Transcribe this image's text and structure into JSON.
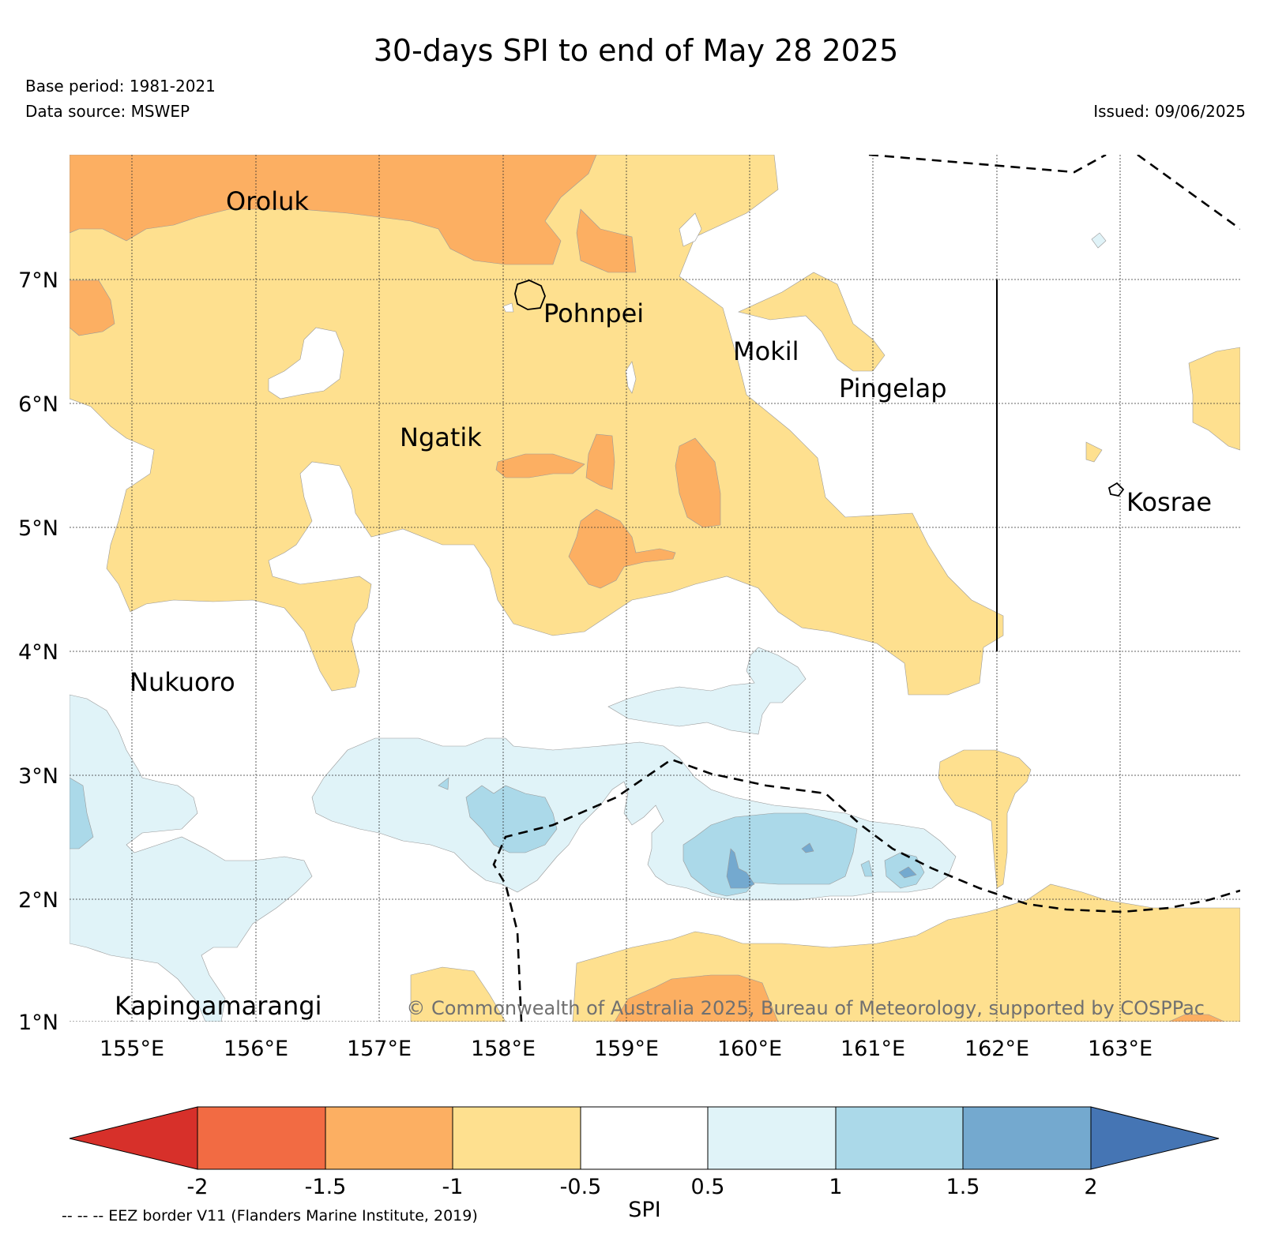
{
  "title": "30-days SPI to end of May 28 2025",
  "base_period": "Base period: 1981-2021",
  "data_source": "Data source: MSWEP",
  "issued": "Issued: 09/06/2025",
  "credit": "© Commonwealth of Australia 2025, Bureau of Meteorology, supported by COSPPac",
  "eez_note": "-- -- -- EEZ border V11 (Flanders Marine Institute, 2019)",
  "map": {
    "lon_range": [
      154.5,
      164.0
    ],
    "lat_range": [
      1.0,
      8.0
    ],
    "lon_ticks": [
      "155°E",
      "156°E",
      "157°E",
      "158°E",
      "159°E",
      "160°E",
      "161°E",
      "162°E",
      "163°E"
    ],
    "lat_ticks": [
      "1°N",
      "2°N",
      "3°N",
      "4°N",
      "5°N",
      "6°N",
      "7°N"
    ],
    "gridlines": true,
    "places": [
      "Oroluk",
      "Pohnpei",
      "Mokil",
      "Pingelap",
      "Ngatik",
      "Kosrae",
      "Nukuoro",
      "Kapingamarangi"
    ]
  },
  "colorbar": {
    "label": "SPI",
    "ticks": [
      "-2",
      "-1.5",
      "-1",
      "-0.5",
      "0.5",
      "1",
      "1.5",
      "2"
    ],
    "colors": [
      "#d7302a",
      "#f26b43",
      "#fcaf62",
      "#fee08f",
      "#ffffff",
      "#e0f3f8",
      "#abd9e9",
      "#74a9cf",
      "#4575b4"
    ]
  },
  "colors": {
    "dry_severe": "#fcaf62",
    "dry_moderate": "#fee08f",
    "wet_mild": "#e0f3f8",
    "wet_moderate": "#abd9e9",
    "wet_strong": "#74a9cf"
  }
}
